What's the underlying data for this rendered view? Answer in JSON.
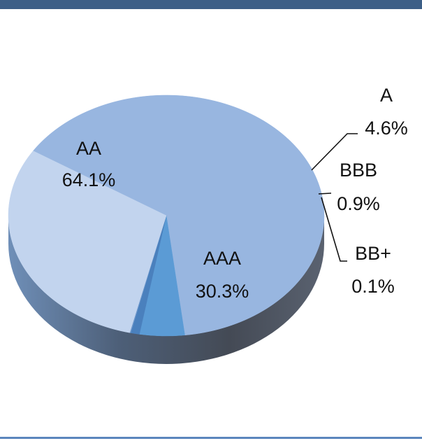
{
  "chart_data": {
    "type": "pie",
    "title": "",
    "style": "3d",
    "slices": [
      {
        "label": "AA",
        "value": 64.1,
        "value_text": "64.1%",
        "color": "#98b6e0"
      },
      {
        "label": "A",
        "value": 4.6,
        "value_text": "4.6%",
        "color": "#5b9bd5"
      },
      {
        "label": "BBB",
        "value": 0.9,
        "value_text": "0.9%",
        "color": "#4a80bd"
      },
      {
        "label": "BB+",
        "value": 0.1,
        "value_text": "0.1%",
        "color": "#6e98cc"
      },
      {
        "label": "AAA",
        "value": 30.3,
        "value_text": "30.3%",
        "color": "#c2d4ee"
      }
    ],
    "colors": {
      "frame": "#3d5f87",
      "side_shadow": "#4c5563"
    }
  }
}
